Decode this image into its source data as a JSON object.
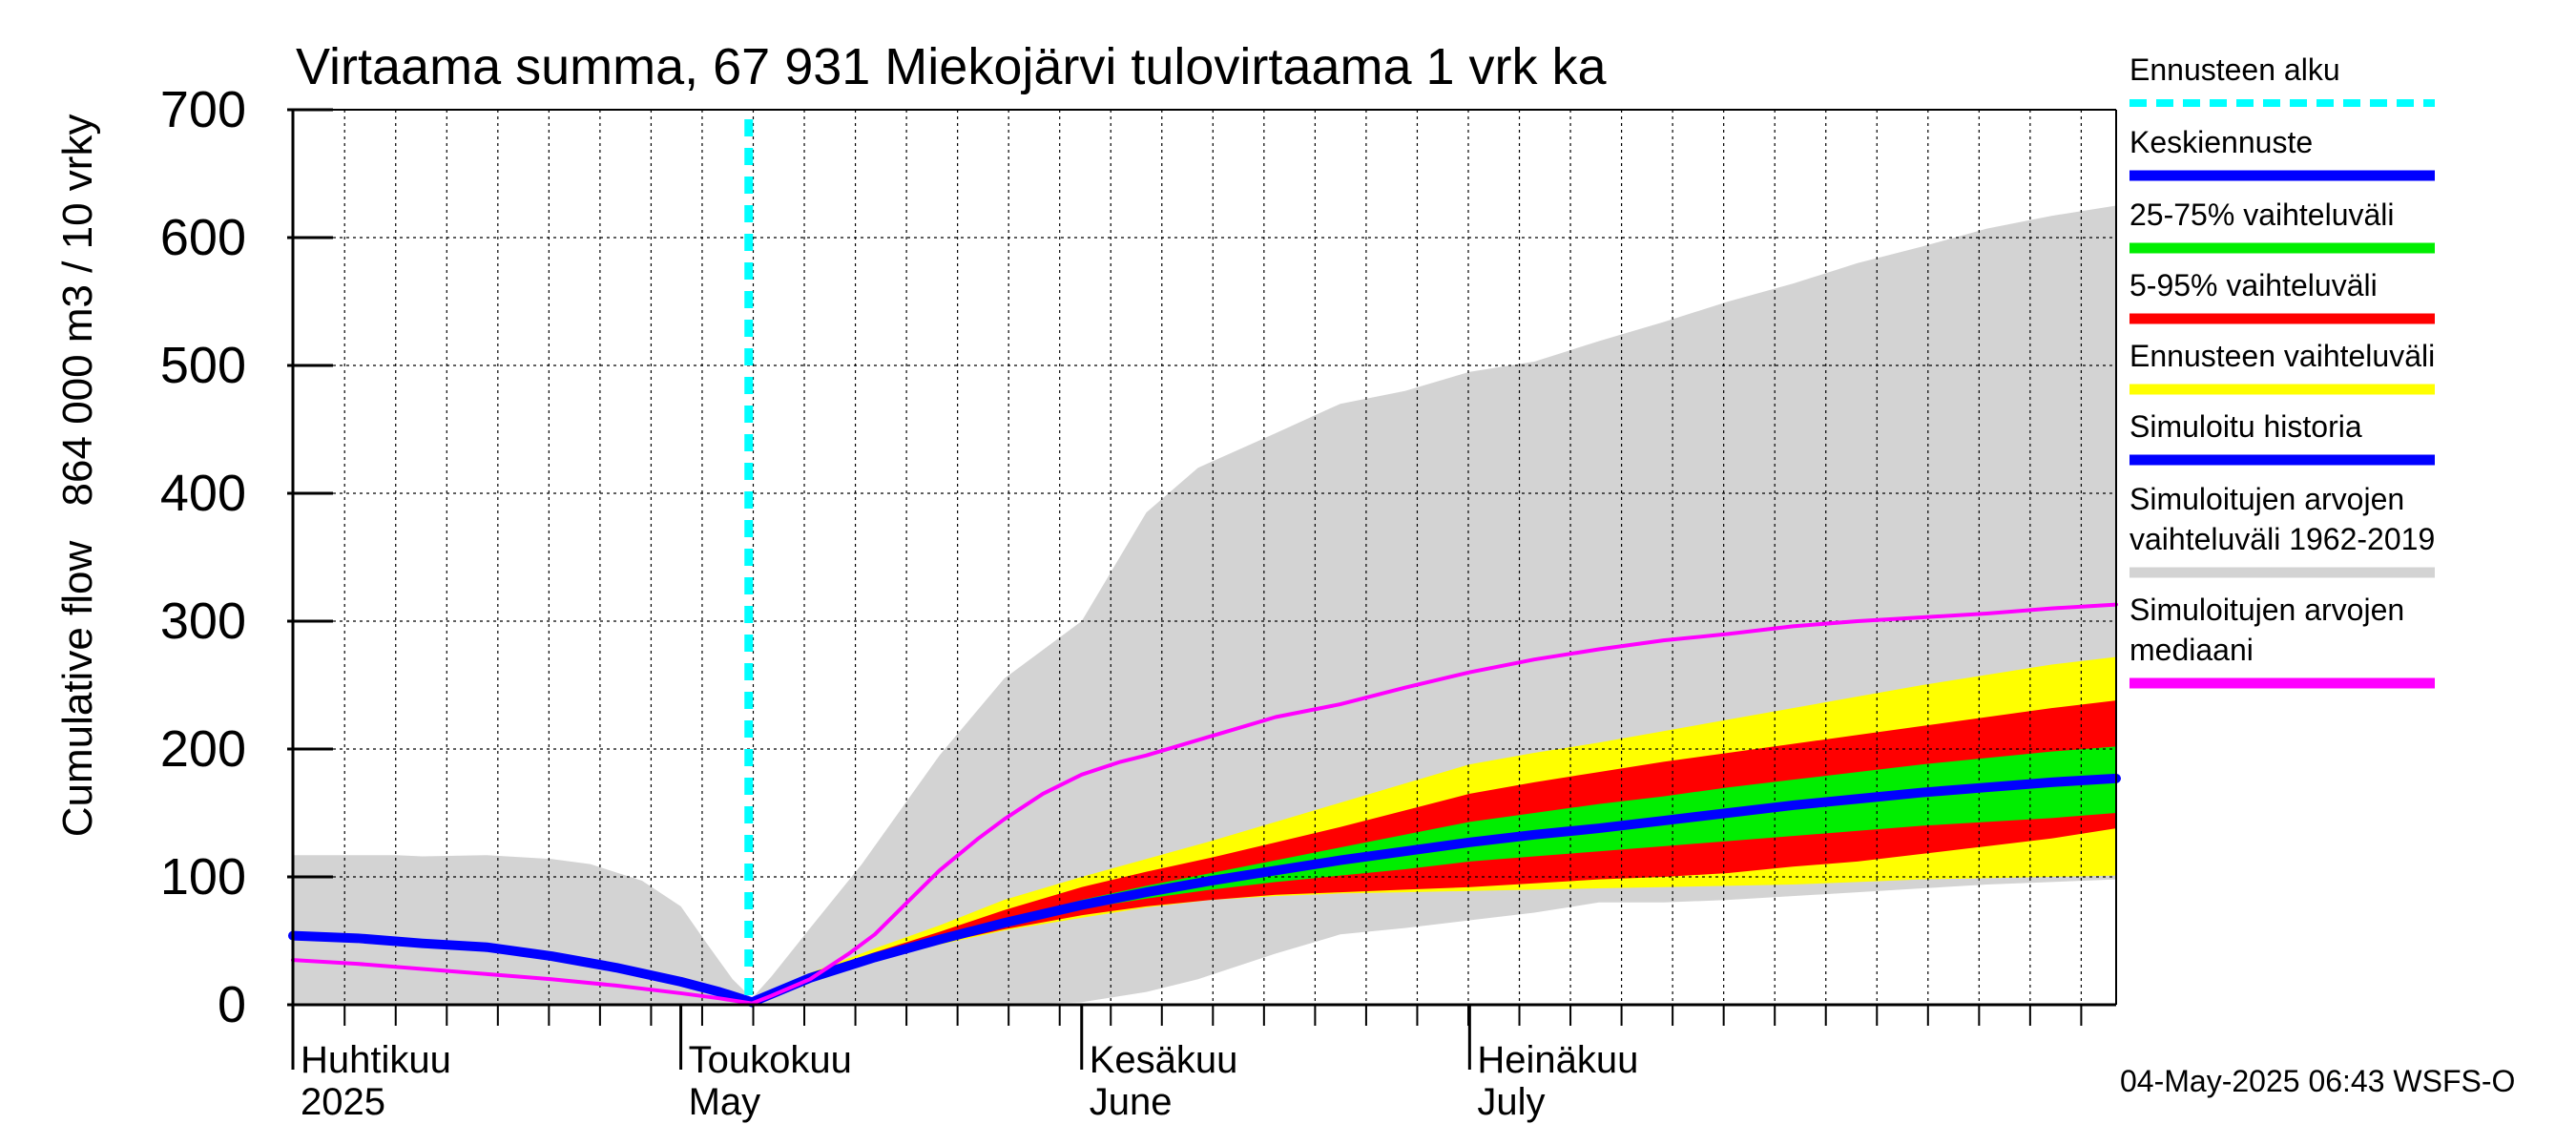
{
  "chart_data": {
    "type": "area",
    "title": "Virtaama summa, 67 931 Miekojärvi tulovirtaama 1 vrk ka",
    "ylabel_lines": [
      "Cumulative flow",
      "864 000 m3 / 10 vrky"
    ],
    "xlabel": "",
    "ylim": [
      0,
      700
    ],
    "y_ticks": [
      0,
      100,
      200,
      300,
      400,
      500,
      600,
      700
    ],
    "x_unit": "days since 2025-03-28",
    "xlim": [
      0,
      141
    ],
    "forecast_start_x": 35.25,
    "month_labels": [
      {
        "x": 0,
        "line1": "Huhtikuu",
        "line2": "2025"
      },
      {
        "x": 30,
        "line1": "Toukokuu",
        "line2": "May"
      },
      {
        "x": 61,
        "line1": "Kesäkuu",
        "line2": "June"
      },
      {
        "x": 91,
        "line1": "Heinäkuu",
        "line2": "July"
      }
    ],
    "historical_range": {
      "x": [
        0,
        3,
        8,
        10,
        15,
        20,
        23,
        27,
        30,
        32,
        34,
        35.5,
        37,
        40,
        44,
        50,
        55,
        61,
        66,
        70,
        76,
        81,
        86,
        91,
        96,
        101,
        106,
        111,
        116,
        121,
        126,
        131,
        136,
        141
      ],
      "upper": [
        117,
        117,
        117,
        116,
        117,
        114,
        110,
        97,
        77,
        48,
        20,
        5,
        22,
        60,
        110,
        195,
        255,
        300,
        385,
        420,
        447,
        470,
        480,
        495,
        503,
        519,
        534,
        550,
        564,
        580,
        593,
        607,
        617,
        625
      ],
      "lower": [
        0,
        0,
        0,
        0,
        0,
        0,
        0,
        0,
        0,
        0,
        0,
        0,
        0,
        0,
        0,
        0,
        0,
        2,
        10,
        20,
        40,
        55,
        60,
        66,
        72,
        80,
        80,
        82,
        85,
        88,
        91,
        94,
        96,
        98
      ]
    },
    "series": [
      {
        "name": "Ennusteen vaihteluväli",
        "color": "#ffff00",
        "x": [
          35.5,
          40,
          45,
          50,
          55,
          61,
          66,
          71,
          76,
          81,
          86,
          91,
          96,
          101,
          106,
          111,
          116,
          121,
          126,
          131,
          136,
          141
        ],
        "upper": [
          2,
          25,
          44,
          62,
          82,
          100,
          114,
          128,
          143,
          158,
          173,
          188,
          197,
          205,
          214,
          223,
          232,
          241,
          250,
          258,
          266,
          272
        ],
        "lower": [
          2,
          20,
          35,
          47,
          58,
          68,
          76,
          82,
          85,
          87,
          88,
          89,
          90,
          91,
          92,
          93,
          94,
          96,
          98,
          99,
          100,
          101
        ]
      },
      {
        "name": "5-95% vaihteluväli",
        "color": "#ff0000",
        "x": [
          35.5,
          40,
          45,
          50,
          55,
          61,
          66,
          71,
          76,
          81,
          86,
          91,
          96,
          101,
          106,
          111,
          116,
          121,
          126,
          131,
          136,
          141
        ],
        "upper": [
          2,
          24,
          41,
          57,
          74,
          92,
          104,
          115,
          127,
          139,
          152,
          165,
          174,
          182,
          190,
          197,
          204,
          211,
          218,
          225,
          232,
          238
        ],
        "lower": [
          2,
          20,
          36,
          48,
          59,
          70,
          77,
          82,
          86,
          88,
          90,
          92,
          95,
          98,
          100,
          103,
          108,
          112,
          118,
          124,
          130,
          138
        ]
      },
      {
        "name": "25-75% vaihteluväli",
        "color": "#00ee00",
        "x": [
          35.5,
          40,
          45,
          50,
          55,
          61,
          66,
          71,
          76,
          81,
          86,
          91,
          96,
          101,
          106,
          111,
          116,
          121,
          126,
          131,
          136,
          141
        ],
        "upper": [
          2,
          22,
          38,
          52,
          66,
          82,
          93,
          103,
          113,
          123,
          133,
          143,
          150,
          157,
          163,
          170,
          176,
          182,
          188,
          193,
          198,
          202
        ],
        "lower": [
          2,
          21,
          37,
          50,
          62,
          75,
          83,
          90,
          96,
          101,
          106,
          112,
          116,
          120,
          124,
          128,
          132,
          136,
          140,
          143,
          146,
          150
        ]
      },
      {
        "name": "Keskiennuste",
        "color": "#0000ff",
        "x": [
          35.5,
          40,
          45,
          50,
          55,
          61,
          66,
          71,
          76,
          81,
          86,
          91,
          96,
          101,
          106,
          111,
          116,
          121,
          126,
          131,
          136,
          141
        ],
        "values": [
          2,
          21,
          37,
          51,
          64,
          78,
          88,
          97,
          105,
          113,
          120,
          127,
          133,
          138,
          144,
          150,
          156,
          161,
          166,
          170,
          174,
          177
        ]
      },
      {
        "name": "Simuloitu historia",
        "color": "#0000ff",
        "x": [
          0,
          5,
          10,
          15,
          20,
          25,
          30,
          33,
          35.5
        ],
        "values": [
          54,
          52,
          48,
          45,
          38,
          29,
          18,
          10,
          2
        ]
      },
      {
        "name": "Simuloitujen arvojen mediaani",
        "color": "#ff00ff",
        "x": [
          0,
          5,
          10,
          15,
          20,
          25,
          30,
          33,
          35.5,
          37,
          40,
          43,
          45,
          48,
          50,
          53,
          55,
          58,
          61,
          64,
          66,
          71,
          76,
          81,
          86,
          91,
          96,
          101,
          106,
          111,
          116,
          121,
          126,
          131,
          136,
          141
        ],
        "values": [
          35,
          32,
          28,
          24,
          20,
          15,
          9,
          5,
          1,
          7,
          20,
          40,
          55,
          85,
          105,
          130,
          145,
          165,
          180,
          190,
          195,
          210,
          225,
          235,
          248,
          260,
          270,
          278,
          285,
          290,
          296,
          300,
          303,
          306,
          310,
          313
        ]
      }
    ]
  },
  "legend": {
    "items": [
      {
        "label_lines": [
          "Ennusteen alku"
        ],
        "color": "#00ffff",
        "style": "dashed"
      },
      {
        "label_lines": [
          "Keskiennuste"
        ],
        "color": "#0000ff",
        "style": "solid"
      },
      {
        "label_lines": [
          "25-75% vaihteluväli"
        ],
        "color": "#00ee00",
        "style": "solid"
      },
      {
        "label_lines": [
          "5-95% vaihteluväli"
        ],
        "color": "#ff0000",
        "style": "solid"
      },
      {
        "label_lines": [
          "Ennusteen vaihteluväli"
        ],
        "color": "#ffff00",
        "style": "solid"
      },
      {
        "label_lines": [
          "Simuloitu historia"
        ],
        "color": "#0000ff",
        "style": "solid"
      },
      {
        "label_lines": [
          "Simuloitujen arvojen",
          "vaihteluväli 1962-2019"
        ],
        "color": "#d3d3d3",
        "style": "solid"
      },
      {
        "label_lines": [
          "Simuloitujen arvojen",
          "mediaani"
        ],
        "color": "#ff00ff",
        "style": "solid"
      }
    ]
  },
  "footer": {
    "timestamp": "04-May-2025 06:43 WSFS-O"
  },
  "colors": {
    "range_band": "#d3d3d3",
    "forecast_start": "#00ffff",
    "grid": "#000000"
  }
}
